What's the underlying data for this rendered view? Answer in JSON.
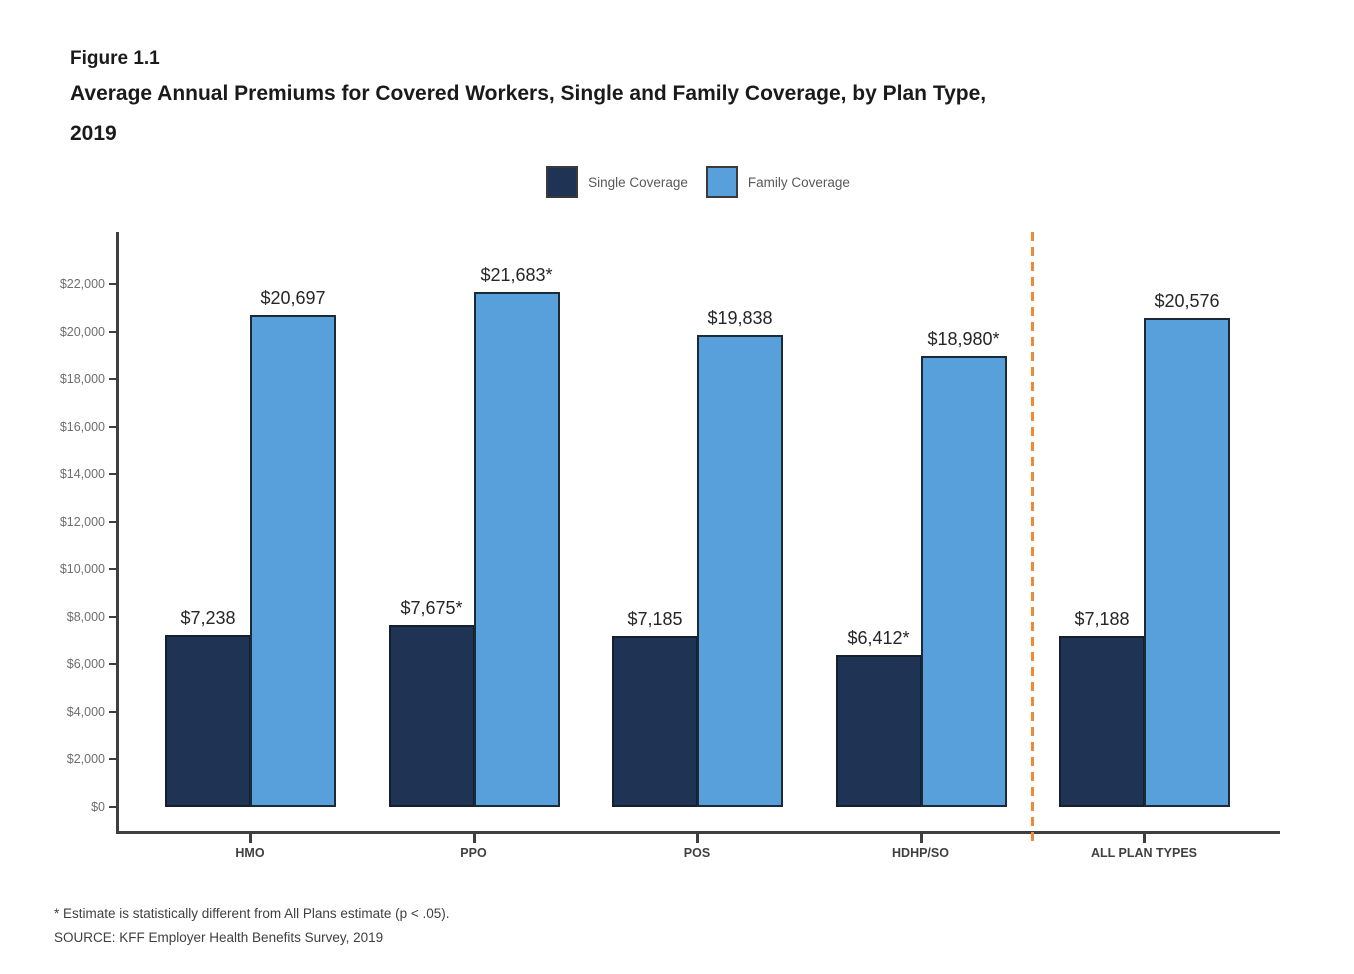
{
  "header": {
    "figure_label": "Figure 1.1",
    "title_line": "Average Annual Premiums for Covered Workers, Single and Family Coverage, by Plan Type,",
    "year_line": "2019"
  },
  "legend": {
    "position": "top-center",
    "items": [
      {
        "label": "Single Coverage",
        "color": "#1F3355"
      },
      {
        "label": "Family Coverage",
        "color": "#57A0DB"
      }
    ]
  },
  "chart_data": {
    "type": "bar",
    "title": "Average Annual Premiums for Covered Workers, Single and Family Coverage, by Plan Type, 2019",
    "categories": [
      "HMO",
      "PPO",
      "POS",
      "HDHP/SO",
      "ALL PLAN TYPES"
    ],
    "series": [
      {
        "name": "Single Coverage",
        "color": "#1F3355",
        "values": [
          7238,
          7675,
          7185,
          6412,
          7188
        ],
        "labels": [
          "$7,238",
          "$7,675*",
          "$7,185",
          "$6,412*",
          "$7,188"
        ]
      },
      {
        "name": "Family Coverage",
        "color": "#57A0DB",
        "values": [
          20697,
          21683,
          19838,
          18980,
          20576
        ],
        "labels": [
          "$20,697",
          "$21,683*",
          "$19,838",
          "$18,980*",
          "$20,576"
        ]
      }
    ],
    "xlabel": "",
    "ylabel": "",
    "ylim": [
      0,
      22000
    ],
    "grid": false,
    "legend_position": "top",
    "y_ticks": [
      {
        "value": 0,
        "label": "$0"
      },
      {
        "value": 2000,
        "label": "$2,000"
      },
      {
        "value": 4000,
        "label": "$4,000"
      },
      {
        "value": 6000,
        "label": "$6,000"
      },
      {
        "value": 8000,
        "label": "$8,000"
      },
      {
        "value": 10000,
        "label": "$10,000"
      },
      {
        "value": 12000,
        "label": "$12,000"
      },
      {
        "value": 14000,
        "label": "$14,000"
      },
      {
        "value": 16000,
        "label": "$16,000"
      },
      {
        "value": 18000,
        "label": "$18,000"
      },
      {
        "value": 20000,
        "label": "$20,000"
      },
      {
        "value": 22000,
        "label": "$22,000"
      }
    ],
    "separator": {
      "description": "dashed vertical line between HDHP/SO and ALL PLAN TYPES",
      "after_category_index": 3,
      "color": "#F08B33",
      "style": "dashed"
    }
  },
  "footnotes": {
    "asterisk": "* Estimate is statistically different from All Plans estimate (p < .05).",
    "source": "SOURCE: KFF Employer Health Benefits Survey, 2019"
  }
}
